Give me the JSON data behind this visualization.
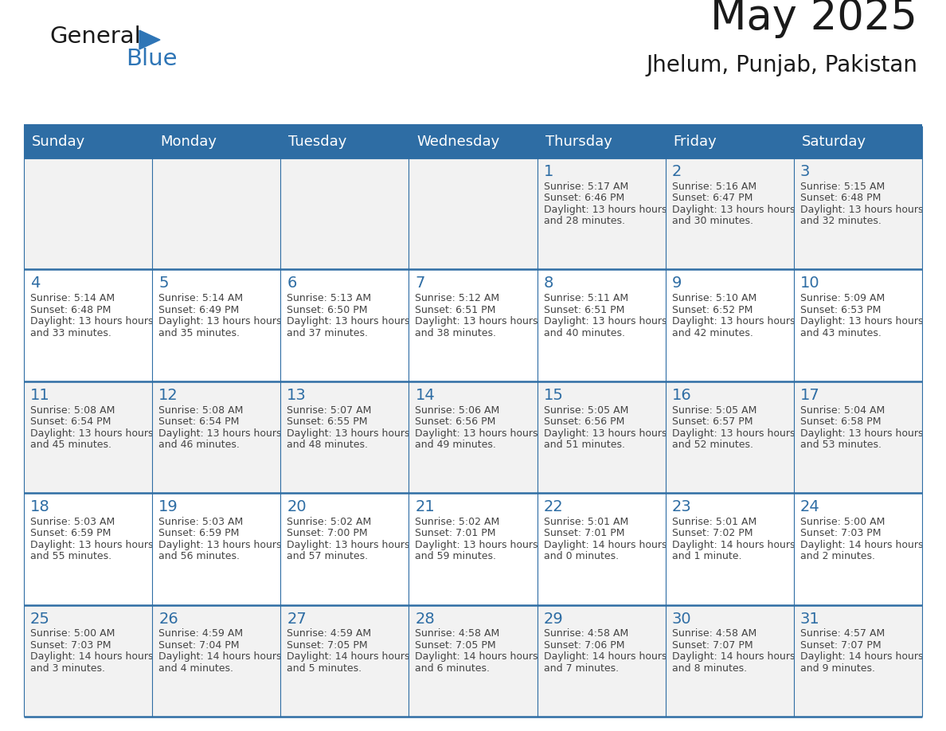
{
  "title": "May 2025",
  "subtitle": "Jhelum, Punjab, Pakistan",
  "days_of_week": [
    "Sunday",
    "Monday",
    "Tuesday",
    "Wednesday",
    "Thursday",
    "Friday",
    "Saturday"
  ],
  "header_bg": "#2E6DA4",
  "header_text": "#FFFFFF",
  "cell_bg_light": "#F2F2F2",
  "cell_bg_white": "#FFFFFF",
  "grid_line_color": "#2E6DA4",
  "day_number_color": "#2E6DA4",
  "cell_text_color": "#444444",
  "title_fontsize": 38,
  "subtitle_fontsize": 20,
  "day_label_fontsize": 13,
  "day_num_fontsize": 14,
  "cell_text_fontsize": 9.0,
  "logo_general_color": "#1a1a1a",
  "logo_blue_color": "#2E75B6",
  "logo_triangle_color": "#2E75B6",
  "calendar_data": [
    [
      {
        "day": "",
        "sunrise": "",
        "sunset": "",
        "daylight": ""
      },
      {
        "day": "",
        "sunrise": "",
        "sunset": "",
        "daylight": ""
      },
      {
        "day": "",
        "sunrise": "",
        "sunset": "",
        "daylight": ""
      },
      {
        "day": "",
        "sunrise": "",
        "sunset": "",
        "daylight": ""
      },
      {
        "day": "1",
        "sunrise": "5:17 AM",
        "sunset": "6:46 PM",
        "daylight": "13 hours and 28 minutes."
      },
      {
        "day": "2",
        "sunrise": "5:16 AM",
        "sunset": "6:47 PM",
        "daylight": "13 hours and 30 minutes."
      },
      {
        "day": "3",
        "sunrise": "5:15 AM",
        "sunset": "6:48 PM",
        "daylight": "13 hours and 32 minutes."
      }
    ],
    [
      {
        "day": "4",
        "sunrise": "5:14 AM",
        "sunset": "6:48 PM",
        "daylight": "13 hours and 33 minutes."
      },
      {
        "day": "5",
        "sunrise": "5:14 AM",
        "sunset": "6:49 PM",
        "daylight": "13 hours and 35 minutes."
      },
      {
        "day": "6",
        "sunrise": "5:13 AM",
        "sunset": "6:50 PM",
        "daylight": "13 hours and 37 minutes."
      },
      {
        "day": "7",
        "sunrise": "5:12 AM",
        "sunset": "6:51 PM",
        "daylight": "13 hours and 38 minutes."
      },
      {
        "day": "8",
        "sunrise": "5:11 AM",
        "sunset": "6:51 PM",
        "daylight": "13 hours and 40 minutes."
      },
      {
        "day": "9",
        "sunrise": "5:10 AM",
        "sunset": "6:52 PM",
        "daylight": "13 hours and 42 minutes."
      },
      {
        "day": "10",
        "sunrise": "5:09 AM",
        "sunset": "6:53 PM",
        "daylight": "13 hours and 43 minutes."
      }
    ],
    [
      {
        "day": "11",
        "sunrise": "5:08 AM",
        "sunset": "6:54 PM",
        "daylight": "13 hours and 45 minutes."
      },
      {
        "day": "12",
        "sunrise": "5:08 AM",
        "sunset": "6:54 PM",
        "daylight": "13 hours and 46 minutes."
      },
      {
        "day": "13",
        "sunrise": "5:07 AM",
        "sunset": "6:55 PM",
        "daylight": "13 hours and 48 minutes."
      },
      {
        "day": "14",
        "sunrise": "5:06 AM",
        "sunset": "6:56 PM",
        "daylight": "13 hours and 49 minutes."
      },
      {
        "day": "15",
        "sunrise": "5:05 AM",
        "sunset": "6:56 PM",
        "daylight": "13 hours and 51 minutes."
      },
      {
        "day": "16",
        "sunrise": "5:05 AM",
        "sunset": "6:57 PM",
        "daylight": "13 hours and 52 minutes."
      },
      {
        "day": "17",
        "sunrise": "5:04 AM",
        "sunset": "6:58 PM",
        "daylight": "13 hours and 53 minutes."
      }
    ],
    [
      {
        "day": "18",
        "sunrise": "5:03 AM",
        "sunset": "6:59 PM",
        "daylight": "13 hours and 55 minutes."
      },
      {
        "day": "19",
        "sunrise": "5:03 AM",
        "sunset": "6:59 PM",
        "daylight": "13 hours and 56 minutes."
      },
      {
        "day": "20",
        "sunrise": "5:02 AM",
        "sunset": "7:00 PM",
        "daylight": "13 hours and 57 minutes."
      },
      {
        "day": "21",
        "sunrise": "5:02 AM",
        "sunset": "7:01 PM",
        "daylight": "13 hours and 59 minutes."
      },
      {
        "day": "22",
        "sunrise": "5:01 AM",
        "sunset": "7:01 PM",
        "daylight": "14 hours and 0 minutes."
      },
      {
        "day": "23",
        "sunrise": "5:01 AM",
        "sunset": "7:02 PM",
        "daylight": "14 hours and 1 minute."
      },
      {
        "day": "24",
        "sunrise": "5:00 AM",
        "sunset": "7:03 PM",
        "daylight": "14 hours and 2 minutes."
      }
    ],
    [
      {
        "day": "25",
        "sunrise": "5:00 AM",
        "sunset": "7:03 PM",
        "daylight": "14 hours and 3 minutes."
      },
      {
        "day": "26",
        "sunrise": "4:59 AM",
        "sunset": "7:04 PM",
        "daylight": "14 hours and 4 minutes."
      },
      {
        "day": "27",
        "sunrise": "4:59 AM",
        "sunset": "7:05 PM",
        "daylight": "14 hours and 5 minutes."
      },
      {
        "day": "28",
        "sunrise": "4:58 AM",
        "sunset": "7:05 PM",
        "daylight": "14 hours and 6 minutes."
      },
      {
        "day": "29",
        "sunrise": "4:58 AM",
        "sunset": "7:06 PM",
        "daylight": "14 hours and 7 minutes."
      },
      {
        "day": "30",
        "sunrise": "4:58 AM",
        "sunset": "7:07 PM",
        "daylight": "14 hours and 8 minutes."
      },
      {
        "day": "31",
        "sunrise": "4:57 AM",
        "sunset": "7:07 PM",
        "daylight": "14 hours and 9 minutes."
      }
    ]
  ]
}
